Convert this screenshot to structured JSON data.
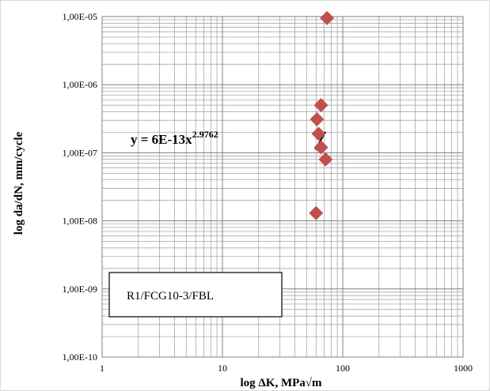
{
  "chart_data": {
    "type": "scatter",
    "title": "",
    "xlabel": "log ΔK, MPa√m",
    "ylabel": "log da/dN, mm/cycle",
    "x_scale": "log",
    "y_scale": "log",
    "xlim": [
      1,
      1000
    ],
    "ylim": [
      1e-10,
      1e-05
    ],
    "x_tick_labels": [
      "1",
      "10",
      "100",
      "1000"
    ],
    "y_tick_labels": [
      "1,00E-05",
      "1,00E-06",
      "1,00E-07",
      "1,00E-08",
      "1,00E-09",
      "1,00E-10"
    ],
    "grid": true,
    "marker_color": "#c0504d",
    "trendline_color": "#000000",
    "points": [
      {
        "x": 74,
        "y": 9.5e-06
      },
      {
        "x": 66,
        "y": 5e-07
      },
      {
        "x": 61,
        "y": 3.1e-07
      },
      {
        "x": 63,
        "y": 1.9e-07
      },
      {
        "x": 66,
        "y": 1.2e-07
      },
      {
        "x": 72,
        "y": 8e-08
      },
      {
        "x": 60,
        "y": 1.3e-08
      }
    ],
    "trendline": {
      "equation_base": "y = 6E-13x",
      "equation_exp": "2.9762",
      "coef": 6e-13,
      "exponent": 2.9762,
      "x_range": [
        59,
        72
      ]
    },
    "annotation": "R1/FCG10-3/FBL"
  }
}
